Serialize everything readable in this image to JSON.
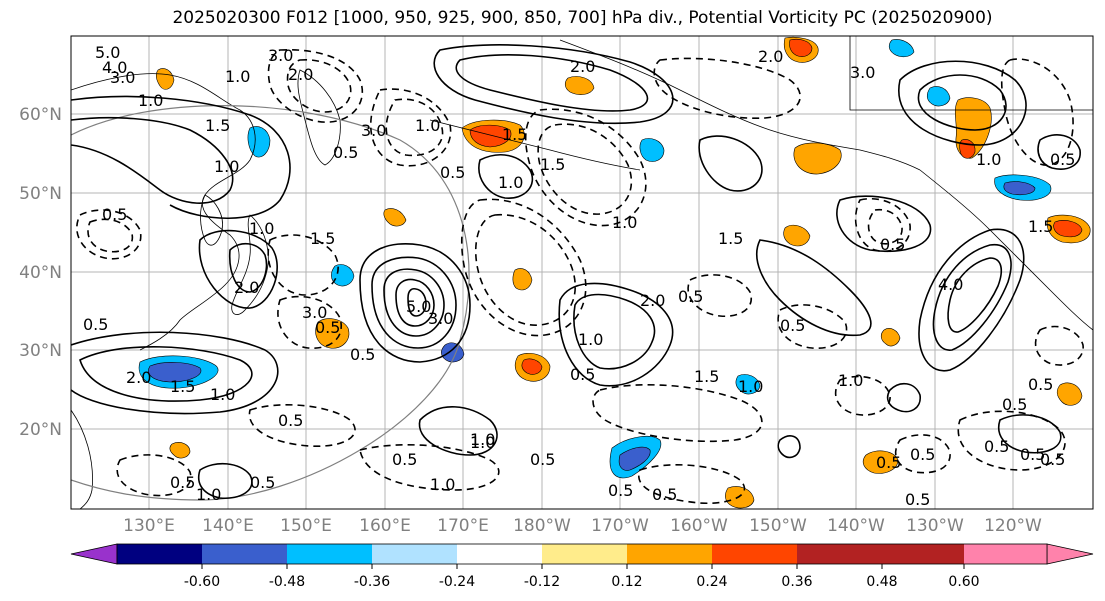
{
  "title": "2025020300 F012 [1000, 950, 925, 900, 850, 700] hPa div., Potential Vorticity PC (2025020900)",
  "lat_labels": [
    "60°N",
    "50°N",
    "40°N",
    "30°N",
    "20°N"
  ],
  "lon_labels": [
    "130°E",
    "140°E",
    "150°E",
    "160°E",
    "170°E",
    "180°W",
    "170°W",
    "160°W",
    "150°W",
    "140°W",
    "130°W",
    "120°W"
  ],
  "colorbar": {
    "colors": [
      "#9932cc",
      "#000080",
      "#3a5fcd",
      "#00bfff",
      "#b0e2ff",
      "#ffffff",
      "#ffec8b",
      "#ffa500",
      "#ff4500",
      "#b22222",
      "#ff82ab"
    ],
    "tick_labels": [
      "-0.60",
      "-0.48",
      "-0.36",
      "-0.24",
      "-0.12",
      "0.12",
      "0.24",
      "0.36",
      "0.48",
      "0.60"
    ]
  },
  "contour_labels": [
    "5.0",
    "4.0",
    "3.0",
    "1.0",
    "3.0",
    "1.0",
    "2.0",
    "1.5",
    "1.0",
    "0.5",
    "0.5",
    "3.0",
    "1.0",
    "2.0",
    "1.0",
    "0.5",
    "1.5",
    "0.5",
    "0.5",
    "1.0",
    "2.0",
    "5.0",
    "3.0",
    "1.5",
    "0.5",
    "3.0",
    "1.0",
    "1.5",
    "2.0",
    "0.5",
    "1.0",
    "1.5",
    "1.0",
    "0.5",
    "1.0",
    "0.5",
    "0.5",
    "1.0",
    "1.5",
    "0.5",
    "0.5",
    "0.5",
    "4.0",
    "1.5",
    "1.0",
    "0.5",
    "0.5",
    "0.5",
    "0.5",
    "0.5",
    "0.5",
    "0.5",
    "3.0",
    "2.0",
    "1.0",
    "1.5",
    "2.0",
    "1.0",
    "0.5",
    "1.0",
    "1.0",
    "0.5",
    "0.5",
    "0.5",
    "0.5",
    "0.5"
  ]
}
